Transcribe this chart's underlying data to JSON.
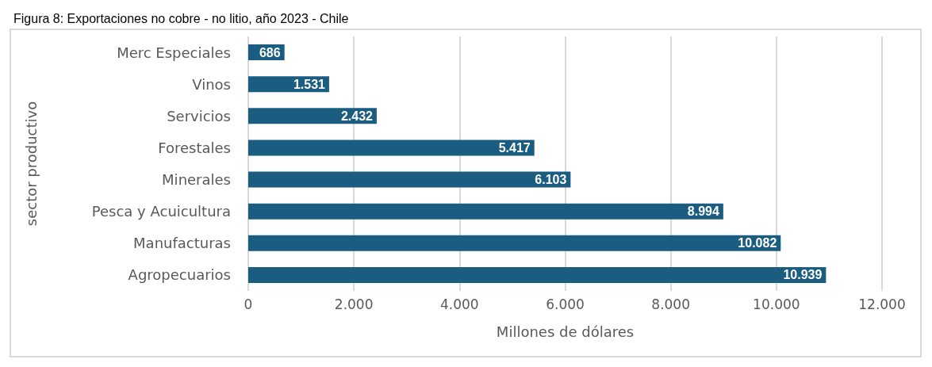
{
  "chart_data": {
    "type": "bar",
    "orientation": "horizontal",
    "title": "Figura 8: Exportaciones no cobre - no litio, año 2023 - Chile",
    "xlabel": "Millones de dólares",
    "ylabel": "sector productivo",
    "categories": [
      "Merc Especiales",
      "Vinos",
      "Servicios",
      "Forestales",
      "Minerales",
      "Pesca y Acuicultura",
      "Manufacturas",
      "Agropecuarios"
    ],
    "values": [
      686,
      1531,
      2432,
      5417,
      6103,
      8994,
      10082,
      10939
    ],
    "value_labels": [
      "686",
      "1.531",
      "2.432",
      "5.417",
      "6.103",
      "8.994",
      "10.082",
      "10.939"
    ],
    "color": "#1a5d80",
    "xlim": [
      0,
      12000
    ],
    "xticks": [
      {
        "value": 0,
        "label": "0"
      },
      {
        "value": 2000,
        "label": "2.000"
      },
      {
        "value": 4000,
        "label": "4.000"
      },
      {
        "value": 6000,
        "label": "6.000"
      },
      {
        "value": 8000,
        "label": "8.000"
      },
      {
        "value": 10000,
        "label": "10.000"
      },
      {
        "value": 12000,
        "label": "12.000"
      }
    ],
    "grid": "x"
  }
}
